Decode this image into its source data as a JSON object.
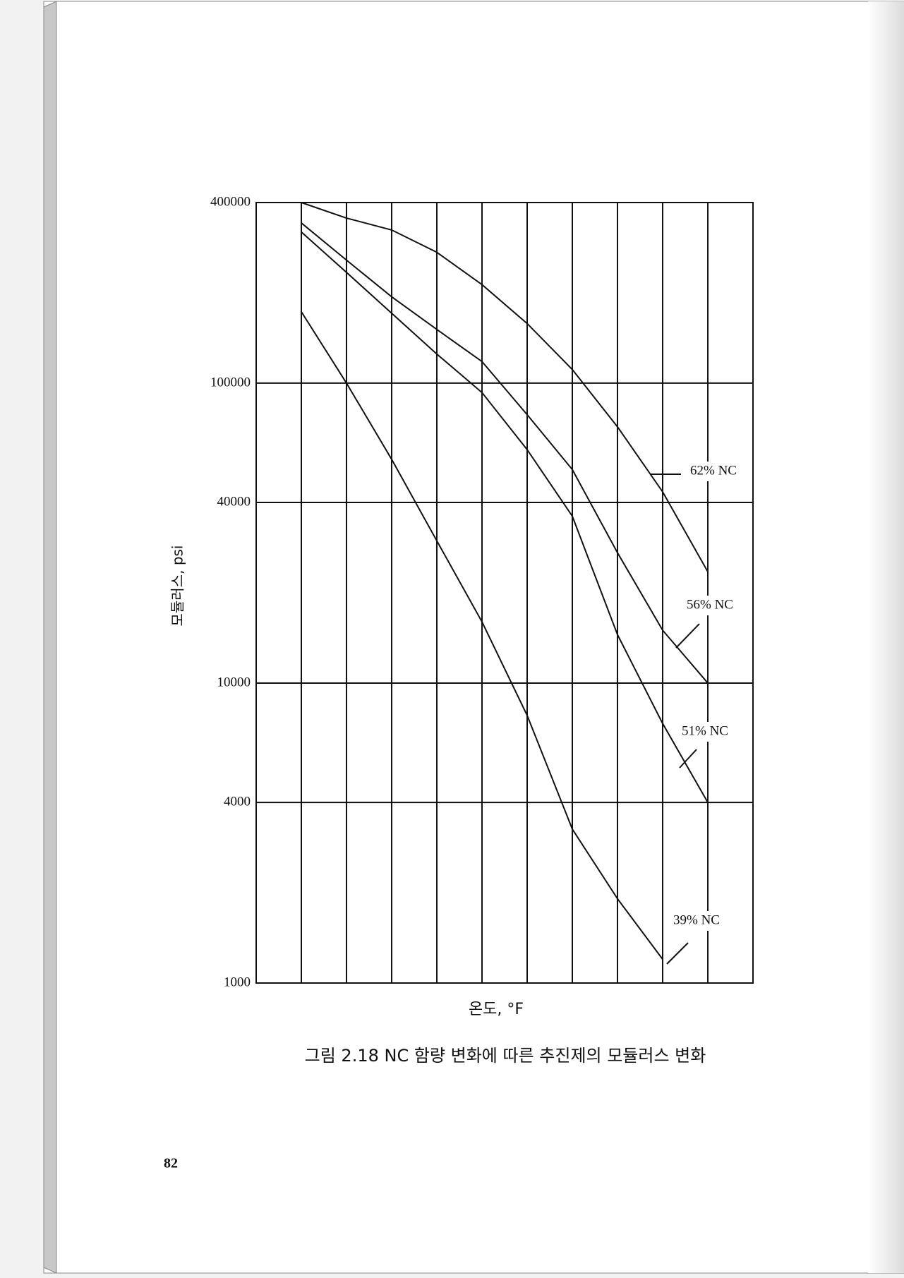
{
  "page_number": "82",
  "chart_data": {
    "type": "line",
    "title": "그림 2.18  NC 함량 변화에 따른 추진제의 모듈러스 변화",
    "x_label": "온도, °F",
    "y_label": "모듈러스, psi",
    "categories": [
      null,
      null,
      null,
      null,
      null,
      null,
      null,
      null,
      null,
      null,
      null,
      null
    ],
    "ylim": [
      1000,
      400000
    ],
    "yticks": [
      1000,
      4000,
      10000,
      40000,
      100000,
      400000
    ],
    "log_y": true,
    "grid": true,
    "series": [
      {
        "name": "62% NC",
        "color": "#111111",
        "values": [
          null,
          400000,
          355000,
          324000,
          273000,
          213000,
          158000,
          111000,
          71500,
          43400,
          23500,
          null
        ]
      },
      {
        "name": "56% NC",
        "color": "#111111",
        "values": [
          null,
          342000,
          257000,
          194000,
          151000,
          118000,
          78500,
          51500,
          27200,
          15000,
          10000,
          null
        ]
      },
      {
        "name": "51% NC",
        "color": "#111111",
        "values": [
          null,
          319000,
          234000,
          171000,
          125000,
          93000,
          60000,
          36000,
          14500,
          7330,
          4000,
          null
        ]
      },
      {
        "name": "39% NC",
        "color": "#111111",
        "values": [
          null,
          173000,
          100000,
          55700,
          29800,
          16000,
          7800,
          3260,
          1910,
          1200,
          null,
          null
        ]
      }
    ]
  }
}
